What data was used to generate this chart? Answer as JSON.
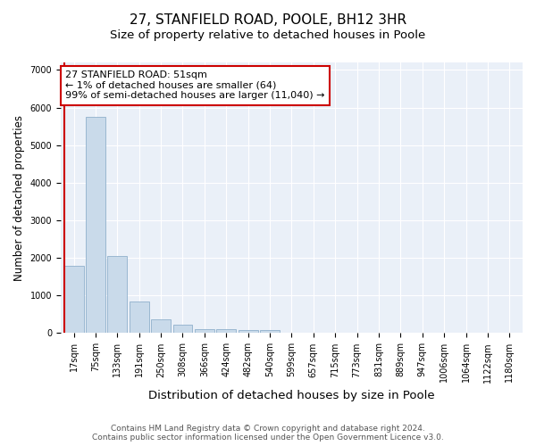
{
  "title": "27, STANFIELD ROAD, POOLE, BH12 3HR",
  "subtitle": "Size of property relative to detached houses in Poole",
  "xlabel": "Distribution of detached houses by size in Poole",
  "ylabel": "Number of detached properties",
  "categories": [
    "17sqm",
    "75sqm",
    "133sqm",
    "191sqm",
    "250sqm",
    "308sqm",
    "366sqm",
    "424sqm",
    "482sqm",
    "540sqm",
    "599sqm",
    "657sqm",
    "715sqm",
    "773sqm",
    "831sqm",
    "889sqm",
    "947sqm",
    "1006sqm",
    "1064sqm",
    "1122sqm",
    "1180sqm"
  ],
  "values": [
    1800,
    5750,
    2050,
    850,
    360,
    230,
    110,
    100,
    80,
    70,
    0,
    0,
    0,
    0,
    0,
    0,
    0,
    0,
    0,
    0,
    0
  ],
  "bar_color": "#c9daea",
  "bar_edge_color": "#8fb0cc",
  "highlight_line_color": "#cc0000",
  "annotation_text": "27 STANFIELD ROAD: 51sqm\n← 1% of detached houses are smaller (64)\n99% of semi-detached houses are larger (11,040) →",
  "annotation_box_color": "#ffffff",
  "annotation_box_edge_color": "#cc0000",
  "ylim": [
    0,
    7200
  ],
  "yticks": [
    0,
    1000,
    2000,
    3000,
    4000,
    5000,
    6000,
    7000
  ],
  "bg_color": "#eaf0f8",
  "footnote": "Contains HM Land Registry data © Crown copyright and database right 2024.\nContains public sector information licensed under the Open Government Licence v3.0.",
  "title_fontsize": 11,
  "subtitle_fontsize": 9.5,
  "xlabel_fontsize": 9.5,
  "ylabel_fontsize": 8.5,
  "tick_fontsize": 7,
  "annot_fontsize": 8,
  "footnote_fontsize": 6.5
}
